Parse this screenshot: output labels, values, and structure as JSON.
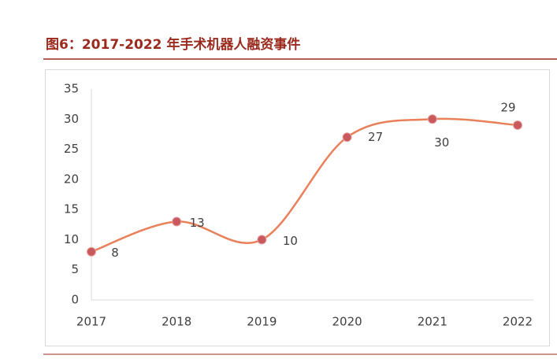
{
  "chart_data": {
    "type": "line",
    "title": "图6：2017-2022 年手术机器人融资事件",
    "categories": [
      "2017",
      "2018",
      "2019",
      "2020",
      "2021",
      "2022"
    ],
    "series": [
      {
        "name": "融资事件",
        "color": "#E9805A",
        "marker_color": "#C9595C",
        "values": [
          8,
          13,
          10,
          27,
          30,
          29
        ]
      }
    ],
    "ylim": [
      0,
      35
    ],
    "yticks": [
      0,
      5,
      10,
      15,
      20,
      25,
      30,
      35
    ],
    "grid": false,
    "smooth": true
  }
}
